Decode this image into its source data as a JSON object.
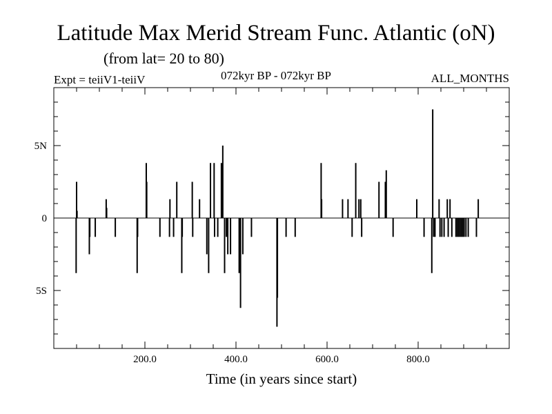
{
  "header": {
    "title": "Latitude Max Merid Stream Func. Atlantic (oN)",
    "subtitle": "(from lat= 20 to 80)",
    "experiment": "Expt = teiiV1-teiiV",
    "period": "072kyr BP - 072kyr BP",
    "months": "ALL_MONTHS"
  },
  "chart_data": {
    "type": "bar",
    "title": "Latitude Max Merid Stream Func. Atlantic (oN)",
    "subtitle": "(from lat= 20 to 80)",
    "xlabel": "Time (in years since start)",
    "ylabel": "",
    "xlim": [
      0,
      1000
    ],
    "ylim": [
      -9,
      9
    ],
    "grid": false,
    "x_ticks": [
      {
        "value": 200,
        "label": "200.0"
      },
      {
        "value": 400,
        "label": "400.0"
      },
      {
        "value": 600,
        "label": "600.0"
      },
      {
        "value": 800,
        "label": "800.0"
      }
    ],
    "y_ticks": [
      {
        "value": 5,
        "label": "5N"
      },
      {
        "value": 0,
        "label": "0"
      },
      {
        "value": -5,
        "label": "5S"
      }
    ],
    "series": [
      {
        "points": [
          [
            49,
            -3.8
          ],
          [
            50,
            2.5
          ],
          [
            51,
            0.5
          ],
          [
            78,
            -2.5
          ],
          [
            79,
            -1.3
          ],
          [
            91,
            -1.3
          ],
          [
            115,
            1.3
          ],
          [
            116,
            0.7
          ],
          [
            135,
            -1.3
          ],
          [
            183,
            -3.8
          ],
          [
            184,
            -1.3
          ],
          [
            203,
            3.8
          ],
          [
            204,
            2.5
          ],
          [
            233,
            -1.3
          ],
          [
            254,
            -1.3
          ],
          [
            255,
            1.3
          ],
          [
            263,
            -1.3
          ],
          [
            270,
            2.5
          ],
          [
            281,
            -3.8
          ],
          [
            282,
            -1.3
          ],
          [
            304,
            2.5
          ],
          [
            305,
            -1.3
          ],
          [
            320,
            1.3
          ],
          [
            336,
            -2.5
          ],
          [
            340,
            -3.8
          ],
          [
            344,
            3.8
          ],
          [
            352,
            3.8
          ],
          [
            353,
            -1.3
          ],
          [
            360,
            -1.3
          ],
          [
            368,
            3.8
          ],
          [
            371,
            5.0
          ],
          [
            375,
            -3.8
          ],
          [
            379,
            -1.3
          ],
          [
            382,
            -2.5
          ],
          [
            388,
            -2.5
          ],
          [
            407,
            -3.8
          ],
          [
            410,
            -6.2
          ],
          [
            415,
            -2.5
          ],
          [
            434,
            -1.3
          ],
          [
            490,
            -7.5
          ],
          [
            491,
            -5.5
          ],
          [
            510,
            -1.3
          ],
          [
            530,
            -1.3
          ],
          [
            587,
            3.8
          ],
          [
            588,
            1.3
          ],
          [
            634,
            1.3
          ],
          [
            646,
            1.3
          ],
          [
            655,
            -1.3
          ],
          [
            663,
            3.8
          ],
          [
            670,
            1.3
          ],
          [
            674,
            1.3
          ],
          [
            676,
            -1.3
          ],
          [
            714,
            2.5
          ],
          [
            728,
            2.5
          ],
          [
            730,
            3.3
          ],
          [
            745,
            -1.3
          ],
          [
            797,
            1.3
          ],
          [
            813,
            -1.3
          ],
          [
            830,
            -3.8
          ],
          [
            832,
            7.5
          ],
          [
            834,
            -1.3
          ],
          [
            837,
            -1.3
          ],
          [
            846,
            1.3
          ],
          [
            848,
            -1.3
          ],
          [
            852,
            -1.3
          ],
          [
            857,
            -1.3
          ],
          [
            864,
            1.3
          ],
          [
            866,
            -1.3
          ],
          [
            870,
            1.3
          ],
          [
            874,
            -1.3
          ],
          [
            883,
            -1.3
          ],
          [
            886,
            -1.3
          ],
          [
            889,
            -1.3
          ],
          [
            892,
            -1.3
          ],
          [
            895,
            -1.3
          ],
          [
            898,
            -1.3
          ],
          [
            901,
            -1.3
          ],
          [
            905,
            -1.3
          ],
          [
            910,
            -1.3
          ],
          [
            928,
            -1.3
          ],
          [
            932,
            1.3
          ]
        ]
      }
    ]
  }
}
